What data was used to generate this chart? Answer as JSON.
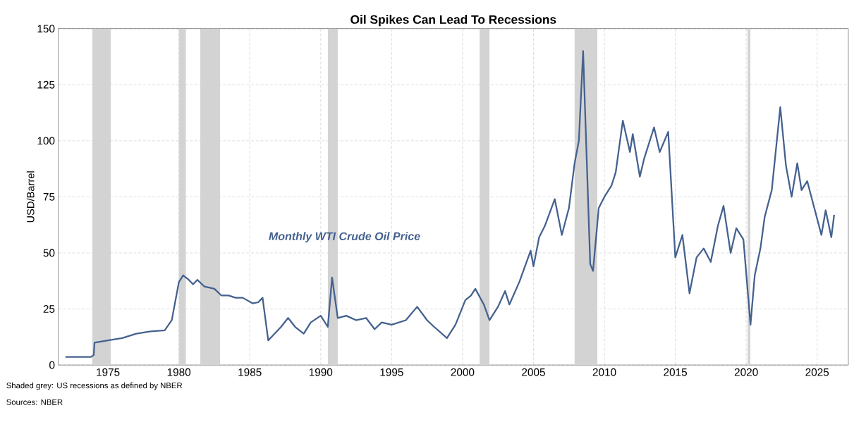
{
  "chart_data": {
    "type": "line",
    "title": "Oil Spikes Can Lead To Recessions",
    "ylabel": "USD/Barrel",
    "xlim": [
      1971.5,
      2027.2
    ],
    "ylim": [
      0,
      150
    ],
    "xticks": [
      1975,
      1980,
      1985,
      1990,
      1995,
      2000,
      2005,
      2010,
      2015,
      2020,
      2025
    ],
    "yticks": [
      0,
      25,
      50,
      75,
      100,
      125,
      150
    ],
    "grid": true,
    "legend": false,
    "series": [
      {
        "name": "Monthly WTI Crude Oil Price",
        "color": "#44618f",
        "x": [
          1972,
          1973.8,
          1974.0,
          1974.05,
          1975,
          1976,
          1977,
          1978,
          1979,
          1979.5,
          1980.0,
          1980.3,
          1980.7,
          1981.0,
          1981.3,
          1981.8,
          1982.5,
          1983,
          1983.5,
          1984,
          1984.5,
          1985.2,
          1985.6,
          1985.9,
          1986.3,
          1986.6,
          1987.2,
          1987.7,
          1988.2,
          1988.8,
          1989.3,
          1990.0,
          1990.5,
          1990.8,
          1991.2,
          1991.8,
          1992.5,
          1993.2,
          1993.8,
          1994.3,
          1995,
          1996,
          1996.8,
          1997.5,
          1998,
          1998.9,
          1999.5,
          2000.2,
          2000.6,
          2000.9,
          2001.5,
          2001.9,
          2002.5,
          2003.0,
          2003.3,
          2004,
          2004.8,
          2005.0,
          2005.4,
          2005.8,
          2006.5,
          2007.0,
          2007.5,
          2007.9,
          2008.2,
          2008.5,
          2009.0,
          2009.2,
          2009.6,
          2010,
          2010.5,
          2010.8,
          2011.3,
          2011.8,
          2012,
          2012.5,
          2012.8,
          2013,
          2013.5,
          2013.9,
          2014.5,
          2015.0,
          2015.5,
          2016.0,
          2016.5,
          2017,
          2017.5,
          2018,
          2018.4,
          2018.9,
          2019.3,
          2019.8,
          2020.3,
          2020.6,
          2021,
          2021.3,
          2021.8,
          2022.4,
          2022.8,
          2023.2,
          2023.6,
          2023.9,
          2024.3,
          2024.8,
          2025.3,
          2025.6,
          2026.0,
          2026.2
        ],
        "values": [
          3.6,
          3.6,
          4.5,
          10,
          11,
          12,
          14,
          15,
          15.5,
          20,
          37,
          40,
          38,
          36,
          38,
          35,
          34,
          31,
          31,
          30,
          30,
          27.5,
          28,
          30,
          11,
          13,
          17,
          21,
          17,
          14,
          19,
          22,
          17,
          39,
          21,
          22,
          20,
          21,
          16,
          19,
          18,
          20,
          26,
          20,
          17,
          12,
          18,
          29,
          31,
          34,
          27,
          20,
          26,
          33,
          27,
          37,
          51,
          44,
          57,
          62,
          74,
          58,
          70,
          90,
          100,
          140,
          45,
          42,
          70,
          75,
          80,
          86,
          109,
          95,
          103,
          84,
          92,
          96,
          106,
          95,
          104,
          48,
          58,
          32,
          48,
          52,
          46,
          62,
          71,
          50,
          61,
          56,
          18,
          40,
          52,
          66,
          78,
          115,
          89,
          75,
          90,
          78,
          82,
          70,
          58,
          69,
          57,
          67
        ]
      }
    ],
    "bands": [
      {
        "axis": "x",
        "from": 1973.9,
        "to": 1975.2,
        "color": "#d3d3d3"
      },
      {
        "axis": "x",
        "from": 1980.0,
        "to": 1980.5,
        "color": "#d3d3d3"
      },
      {
        "axis": "x",
        "from": 1981.5,
        "to": 1982.9,
        "color": "#d3d3d3"
      },
      {
        "axis": "x",
        "from": 1990.5,
        "to": 1991.2,
        "color": "#d3d3d3"
      },
      {
        "axis": "x",
        "from": 2001.2,
        "to": 2001.9,
        "color": "#d3d3d3"
      },
      {
        "axis": "x",
        "from": 2007.9,
        "to": 2009.5,
        "color": "#d3d3d3"
      },
      {
        "axis": "x",
        "from": 2020.1,
        "to": 2020.3,
        "color": "#d3d3d3"
      }
    ],
    "annotations": [
      "Shaded grey: US recessions as defined by NBER",
      "Sources: NBER"
    ]
  }
}
